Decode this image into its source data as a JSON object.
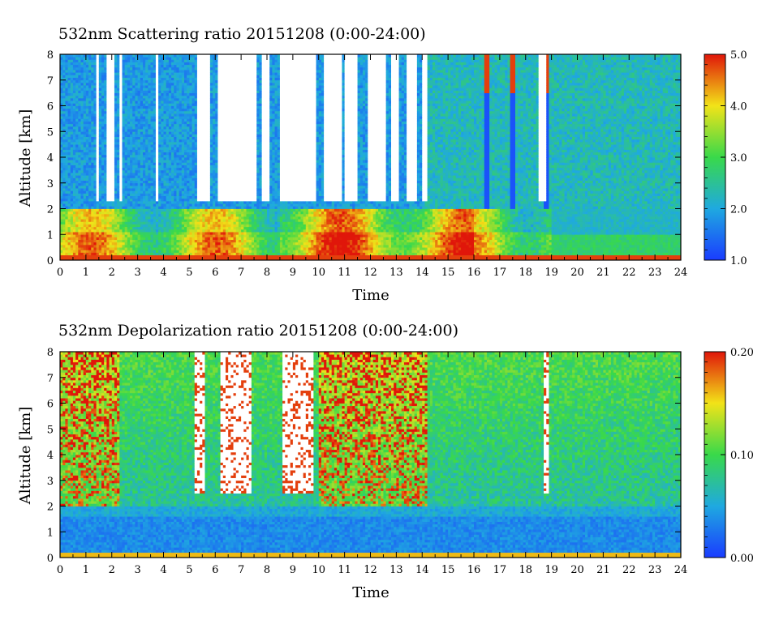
{
  "chart_data": [
    {
      "type": "heatmap",
      "title": "532nm Scattering ratio  20151208 (0:00-24:00)",
      "xlabel": "Time",
      "ylabel": "Altitude [km]",
      "xlim": [
        0,
        24
      ],
      "ylim": [
        0,
        8
      ],
      "xticks": [
        "0",
        "1",
        "2",
        "3",
        "4",
        "5",
        "6",
        "7",
        "8",
        "9",
        "10",
        "11",
        "12",
        "13",
        "14",
        "15",
        "16",
        "17",
        "18",
        "19",
        "20",
        "21",
        "22",
        "23",
        "24"
      ],
      "yticks": [
        "0",
        "1",
        "2",
        "3",
        "4",
        "5",
        "6",
        "7",
        "8"
      ],
      "colorbar": {
        "min": 1.0,
        "max": 5.0,
        "ticks": [
          "1.0",
          "2.0",
          "3.0",
          "4.0",
          "5.0"
        ]
      },
      "colors": {
        "low": "#1a3cff",
        "mid_low": "#1fa9e0",
        "mid": "#39d94a",
        "mid_high": "#f2e318",
        "high": "#e0160a",
        "saturated": "#ffffff"
      },
      "features": {
        "boundary_layer_top_km": 2.0,
        "surface_layer_km": 0.2,
        "white_saturated_intervals_h": [
          [
            1.4,
            1.5
          ],
          [
            1.8,
            2.1
          ],
          [
            2.3,
            2.35
          ],
          [
            3.65,
            3.8
          ],
          [
            5.3,
            5.8
          ],
          [
            6.1,
            7.6
          ],
          [
            7.8,
            8.1
          ],
          [
            8.5,
            9.9
          ],
          [
            10.2,
            10.9
          ],
          [
            11.0,
            11.5
          ],
          [
            11.9,
            12.6
          ],
          [
            12.8,
            13.1
          ],
          [
            13.4,
            13.8
          ],
          [
            14.0,
            14.2
          ],
          [
            18.55,
            18.75
          ]
        ],
        "thin_cloud_streaks_h": [
          16.5,
          17.5,
          18.8
        ]
      }
    },
    {
      "type": "heatmap",
      "title": "532nm Depolarization ratio  20151208 (0:00-24:00)",
      "xlabel": "Time",
      "ylabel": "Altitude [km]",
      "xlim": [
        0,
        24
      ],
      "ylim": [
        0,
        8
      ],
      "xticks": [
        "0",
        "1",
        "2",
        "3",
        "4",
        "5",
        "6",
        "7",
        "8",
        "9",
        "10",
        "11",
        "12",
        "13",
        "14",
        "15",
        "16",
        "17",
        "18",
        "19",
        "20",
        "21",
        "22",
        "23",
        "24"
      ],
      "yticks": [
        "0",
        "1",
        "2",
        "3",
        "4",
        "5",
        "6",
        "7",
        "8"
      ],
      "colorbar": {
        "min": 0.0,
        "max": 0.2,
        "ticks": [
          "0.00",
          "0.10",
          "0.20"
        ]
      },
      "colors": {
        "low": "#1a3cff",
        "mid_low": "#1fa9e0",
        "mid": "#39d94a",
        "mid_high": "#f2e318",
        "high": "#e0160a",
        "saturated": "#ffffff"
      },
      "features": {
        "boundary_layer_top_km": 2.0,
        "surface_layer_km": 0.2,
        "white_saturated_intervals_h": [
          [
            5.2,
            5.6
          ],
          [
            6.2,
            7.4
          ],
          [
            8.6,
            9.8
          ],
          [
            18.75,
            18.85
          ]
        ],
        "noisy_high_intervals_h": [
          [
            0.0,
            2.3
          ],
          [
            10.0,
            14.2
          ]
        ]
      }
    }
  ]
}
